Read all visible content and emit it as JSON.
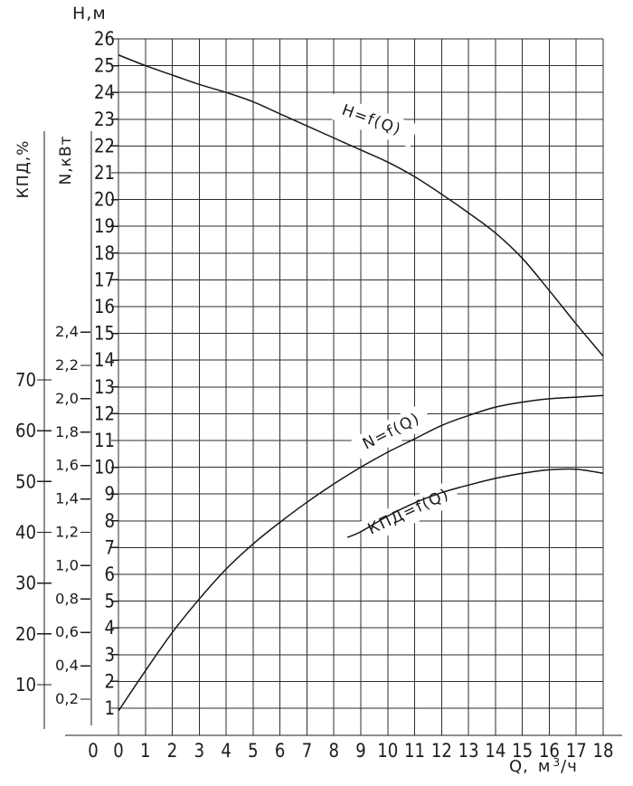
{
  "page": {
    "background": "#ffffff"
  },
  "chart": {
    "titles": {
      "h_axis": "Н,м",
      "n_axis": "N,кВт",
      "eff_axis": "КПД,%",
      "q_axis_prefix": "Q,",
      "q_axis_unit_base": "м",
      "q_axis_unit_sup": "3",
      "q_axis_unit_suffix": "/ч"
    },
    "colors": {
      "background": "#ffffff",
      "grid": "#2e2e2e",
      "axis": "#1c1c1c",
      "curve": "#161616",
      "text": "#1c1c1c"
    }
  },
  "chart_data": {
    "type": "line",
    "title": "",
    "grid": true,
    "x_axis": {
      "label": "Q, м³/ч",
      "min": 0,
      "max": 18,
      "tick_labels": [
        "0",
        "1",
        "2",
        "3",
        "4",
        "5",
        "6",
        "7",
        "8",
        "9",
        "10",
        "11",
        "12",
        "13",
        "14",
        "15",
        "16",
        "17",
        "18"
      ],
      "origin_label_secondary": "0"
    },
    "y_axes": {
      "H": {
        "label": "Н,м",
        "min": 1,
        "max": 26,
        "tick_labels": [
          "26",
          "25",
          "24",
          "23",
          "22",
          "21",
          "20",
          "19",
          "18",
          "17",
          "16",
          "15",
          "14",
          "13",
          "12",
          "11",
          "10",
          "9",
          "8",
          "7",
          "6",
          "5",
          "4",
          "3",
          "2",
          "1"
        ]
      },
      "N": {
        "label": "N,кВт",
        "min": 0.2,
        "max": 2.4,
        "tick_labels": [
          "2,4",
          "2,2",
          "2,0",
          "1,8",
          "1,6",
          "1,4",
          "1,2",
          "1,0",
          "0,8",
          "0,6",
          "0,4",
          "0,2"
        ]
      },
      "EFF": {
        "label": "КПД,%",
        "min": 10,
        "max": 70,
        "tick_labels": [
          "70",
          "60",
          "50",
          "40",
          "30",
          "20",
          "10"
        ]
      }
    },
    "series": [
      {
        "name": "H=f(Q)",
        "y_axis": "H",
        "points": [
          [
            0,
            25.4
          ],
          [
            1,
            25.0
          ],
          [
            2,
            24.65
          ],
          [
            3,
            24.3
          ],
          [
            4,
            24.0
          ],
          [
            5,
            23.65
          ],
          [
            6,
            23.2
          ],
          [
            7,
            22.75
          ],
          [
            8,
            22.3
          ],
          [
            9,
            21.85
          ],
          [
            10,
            21.4
          ],
          [
            11,
            20.85
          ],
          [
            12,
            20.2
          ],
          [
            13,
            19.5
          ],
          [
            14,
            18.75
          ],
          [
            15,
            17.8
          ],
          [
            16,
            16.6
          ],
          [
            17,
            15.35
          ],
          [
            18,
            14.15
          ]
        ]
      },
      {
        "name": "N=f(Q)",
        "y_axis": "N",
        "points": [
          [
            0,
            0.13
          ],
          [
            1,
            0.37
          ],
          [
            2,
            0.6
          ],
          [
            3,
            0.8
          ],
          [
            4,
            0.98
          ],
          [
            5,
            1.13
          ],
          [
            6,
            1.26
          ],
          [
            7,
            1.38
          ],
          [
            8,
            1.49
          ],
          [
            9,
            1.59
          ],
          [
            10,
            1.68
          ],
          [
            11,
            1.76
          ],
          [
            12,
            1.84
          ],
          [
            13,
            1.9
          ],
          [
            14,
            1.95
          ],
          [
            15,
            1.98
          ],
          [
            16,
            2.0
          ],
          [
            17,
            2.01
          ],
          [
            18,
            2.02
          ]
        ]
      },
      {
        "name": "КПД=f(Q)",
        "y_axis": "EFF",
        "points": [
          [
            8.5,
            39.0
          ],
          [
            9,
            40.1
          ],
          [
            10,
            43.2
          ],
          [
            11,
            45.8
          ],
          [
            12,
            47.8
          ],
          [
            13,
            49.3
          ],
          [
            14,
            50.6
          ],
          [
            15,
            51.6
          ],
          [
            16,
            52.3
          ],
          [
            17,
            52.4
          ],
          [
            18,
            51.6
          ]
        ]
      }
    ]
  }
}
